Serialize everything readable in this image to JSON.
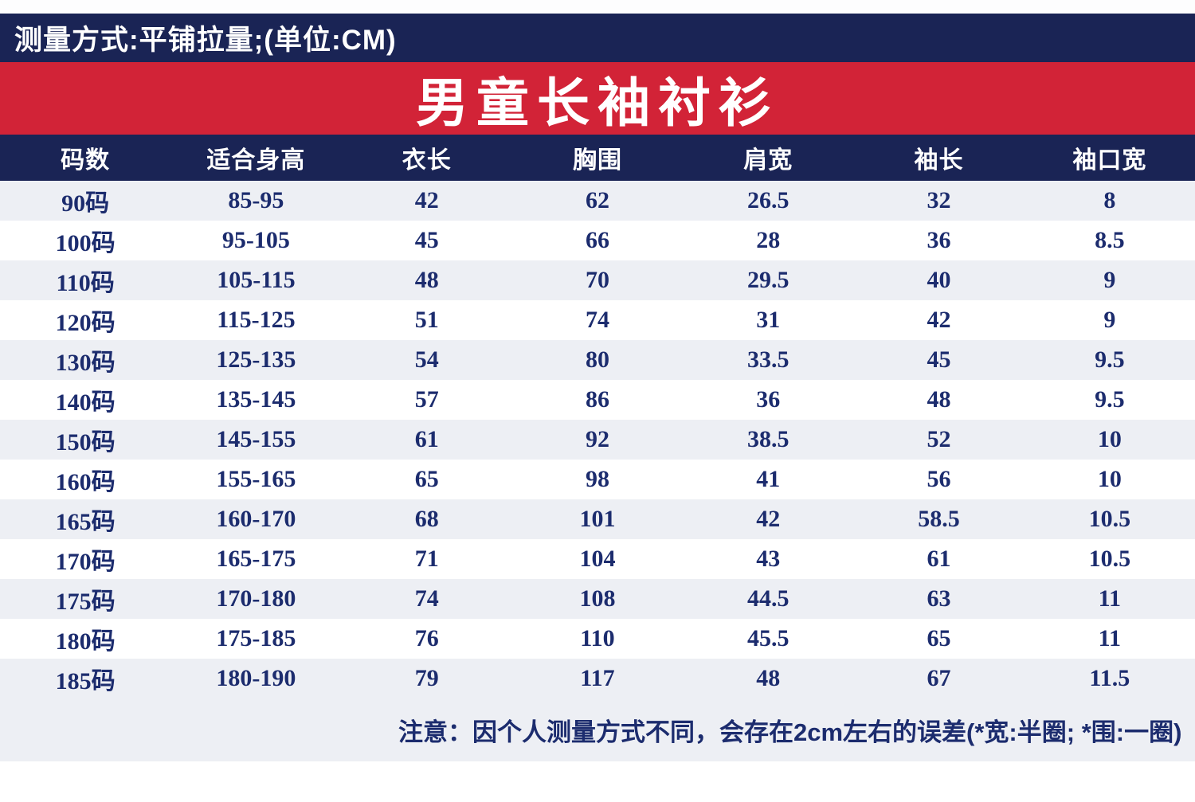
{
  "colors": {
    "navy": "#1a2455",
    "red": "#d22337",
    "row_stripe": "#edeff4",
    "cell_text": "#1c2c6e"
  },
  "measure_bar": {
    "text": "测量方式:平铺拉量;(单位:CM)"
  },
  "banner": {
    "title": "男童长袖衬衫"
  },
  "table": {
    "columns": [
      "码数",
      "适合身高",
      "衣长",
      "胸围",
      "肩宽",
      "袖长",
      "袖口宽"
    ],
    "rows": [
      [
        "90码",
        "85-95",
        "42",
        "62",
        "26.5",
        "32",
        "8"
      ],
      [
        "100码",
        "95-105",
        "45",
        "66",
        "28",
        "36",
        "8.5"
      ],
      [
        "110码",
        "105-115",
        "48",
        "70",
        "29.5",
        "40",
        "9"
      ],
      [
        "120码",
        "115-125",
        "51",
        "74",
        "31",
        "42",
        "9"
      ],
      [
        "130码",
        "125-135",
        "54",
        "80",
        "33.5",
        "45",
        "9.5"
      ],
      [
        "140码",
        "135-145",
        "57",
        "86",
        "36",
        "48",
        "9.5"
      ],
      [
        "150码",
        "145-155",
        "61",
        "92",
        "38.5",
        "52",
        "10"
      ],
      [
        "160码",
        "155-165",
        "65",
        "98",
        "41",
        "56",
        "10"
      ],
      [
        "165码",
        "160-170",
        "68",
        "101",
        "42",
        "58.5",
        "10.5"
      ],
      [
        "170码",
        "165-175",
        "71",
        "104",
        "43",
        "61",
        "10.5"
      ],
      [
        "175码",
        "170-180",
        "74",
        "108",
        "44.5",
        "63",
        "11"
      ],
      [
        "180码",
        "175-185",
        "76",
        "110",
        "45.5",
        "65",
        "11"
      ],
      [
        "185码",
        "180-190",
        "79",
        "117",
        "48",
        "67",
        "11.5"
      ]
    ]
  },
  "note": {
    "text": "注意：因个人测量方式不同，会存在2cm左右的误差(*宽:半圈; *围:一圈)"
  }
}
